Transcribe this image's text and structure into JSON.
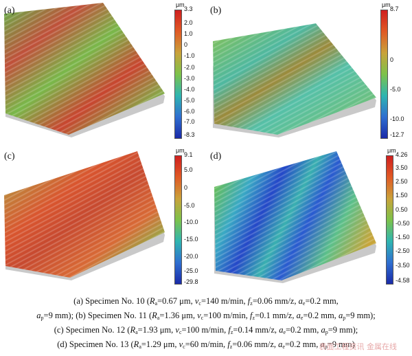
{
  "panels": [
    {
      "id": "a",
      "label": "(a)",
      "unit": "μm",
      "ticks": [
        "3.3",
        "2.0",
        "1.0",
        "0",
        "-1.0",
        "-2.0",
        "-3.0",
        "-4.0",
        "-5.0",
        "-6.0",
        "-7.0",
        "-8.3"
      ],
      "colors": {
        "bar": [
          "#cf1f1f",
          "#e05a25",
          "#c9a23a",
          "#7dc24a",
          "#2fb5b0",
          "#2f6fd0",
          "#1a2aa8"
        ]
      }
    },
    {
      "id": "b",
      "label": "(b)",
      "unit": "μm",
      "ticks": [
        "8.7",
        "0",
        "-5.0",
        "-10.0",
        "-12.7"
      ],
      "colors": {
        "bar": [
          "#cf1f1f",
          "#e05a25",
          "#c9a23a",
          "#7dc24a",
          "#2fb5b0",
          "#2f6fd0",
          "#1a2aa8"
        ]
      }
    },
    {
      "id": "c",
      "label": "(c)",
      "unit": "μm",
      "ticks": [
        "9.1",
        "5.0",
        "0",
        "-5.0",
        "-10.0",
        "-15.0",
        "-20.0",
        "-25.0",
        "-29.8"
      ],
      "colors": {
        "bar": [
          "#cf1f1f",
          "#e05a25",
          "#c9a23a",
          "#7dc24a",
          "#2fb5b0",
          "#2f6fd0",
          "#1a2aa8"
        ]
      }
    },
    {
      "id": "d",
      "label": "(d)",
      "unit": "μm",
      "ticks": [
        "4.26",
        "3.50",
        "2.50",
        "1.50",
        "0.50",
        "-0.50",
        "-1.50",
        "-2.50",
        "-3.50",
        "-4.58"
      ],
      "colors": {
        "bar": [
          "#cf1f1f",
          "#e05a25",
          "#c9a23a",
          "#7dc24a",
          "#2fb5b0",
          "#2f6fd0",
          "#1a2aa8"
        ]
      }
    }
  ],
  "caption": {
    "a": {
      "prefix": "(a) Specimen No. 10 (",
      "ra": "=0.67 μm, ",
      "vc": "=140 m/min, ",
      "fz": "=0.06 mm/z, ",
      "ae": "=0.2 mm,"
    },
    "a2": {
      "ap": "=9 mm); "
    },
    "b": {
      "prefix": "(b) Specimen No. 11 (",
      "ra": "=1.36 μm, ",
      "vc": "=100 m/min, ",
      "fz": "=0.1 mm/z, ",
      "ae": "=0.2 mm, ",
      "ap": "=9 mm);"
    },
    "c": {
      "prefix": "(c) Specimen No. 12 (",
      "ra": "=1.93 μm, ",
      "vc": "=100 m/min, ",
      "fz": "=0.14 mm/z, ",
      "ae": "=0.2 mm, ",
      "ap": "=9 mm);"
    },
    "d": {
      "prefix": "(d) Specimen No. 13 (",
      "ra": "=1.29 μm, ",
      "vc": "=60 m/min, ",
      "fz": "=0.06 mm/z, ",
      "ae": "=0.2 mm, ",
      "ap": "=9 mm)"
    }
  },
  "watermark": "表面工程资讯 金属在线"
}
